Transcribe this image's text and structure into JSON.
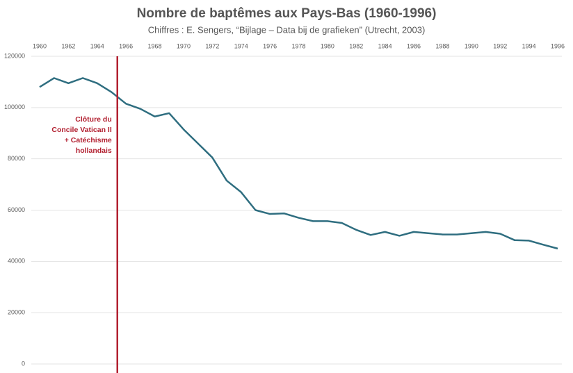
{
  "chart_data": {
    "type": "line",
    "title": "Nombre de baptêmes aux Pays-Bas (1960-1996)",
    "subtitle": "Chiffres : E. Sengers, “Bijlage – Data bij de grafieken” (Utrecht, 2003)",
    "x": [
      1960,
      1961,
      1962,
      1963,
      1964,
      1965,
      1966,
      1967,
      1968,
      1969,
      1970,
      1971,
      1972,
      1973,
      1974,
      1975,
      1976,
      1977,
      1978,
      1979,
      1980,
      1981,
      1982,
      1983,
      1984,
      1985,
      1986,
      1987,
      1988,
      1989,
      1990,
      1991,
      1992,
      1993,
      1994,
      1995,
      1996
    ],
    "values": [
      108000,
      111500,
      109500,
      111500,
      109500,
      106000,
      101500,
      99500,
      96500,
      97800,
      91500,
      86000,
      80500,
      71500,
      67000,
      60000,
      58500,
      58700,
      57000,
      55700,
      55700,
      55000,
      52300,
      50300,
      51500,
      50000,
      51500,
      51000,
      50500,
      50500,
      51000,
      51500,
      50800,
      48300,
      48100,
      46500,
      45000
    ],
    "color": "#2f6e80",
    "xlim": [
      1960,
      1996
    ],
    "xticks": [
      1960,
      1962,
      1964,
      1966,
      1968,
      1970,
      1972,
      1974,
      1976,
      1978,
      1980,
      1982,
      1984,
      1986,
      1988,
      1990,
      1992,
      1994,
      1996
    ],
    "ylim": [
      0,
      120000
    ],
    "yticks": [
      0,
      20000,
      40000,
      60000,
      80000,
      100000,
      120000
    ],
    "grid": true,
    "marker": {
      "x": 1965.4,
      "color": "#b22030",
      "label_lines": [
        "Clôture du",
        "Concile Vatican II",
        "+ Catéchisme",
        "hollandais"
      ]
    }
  }
}
